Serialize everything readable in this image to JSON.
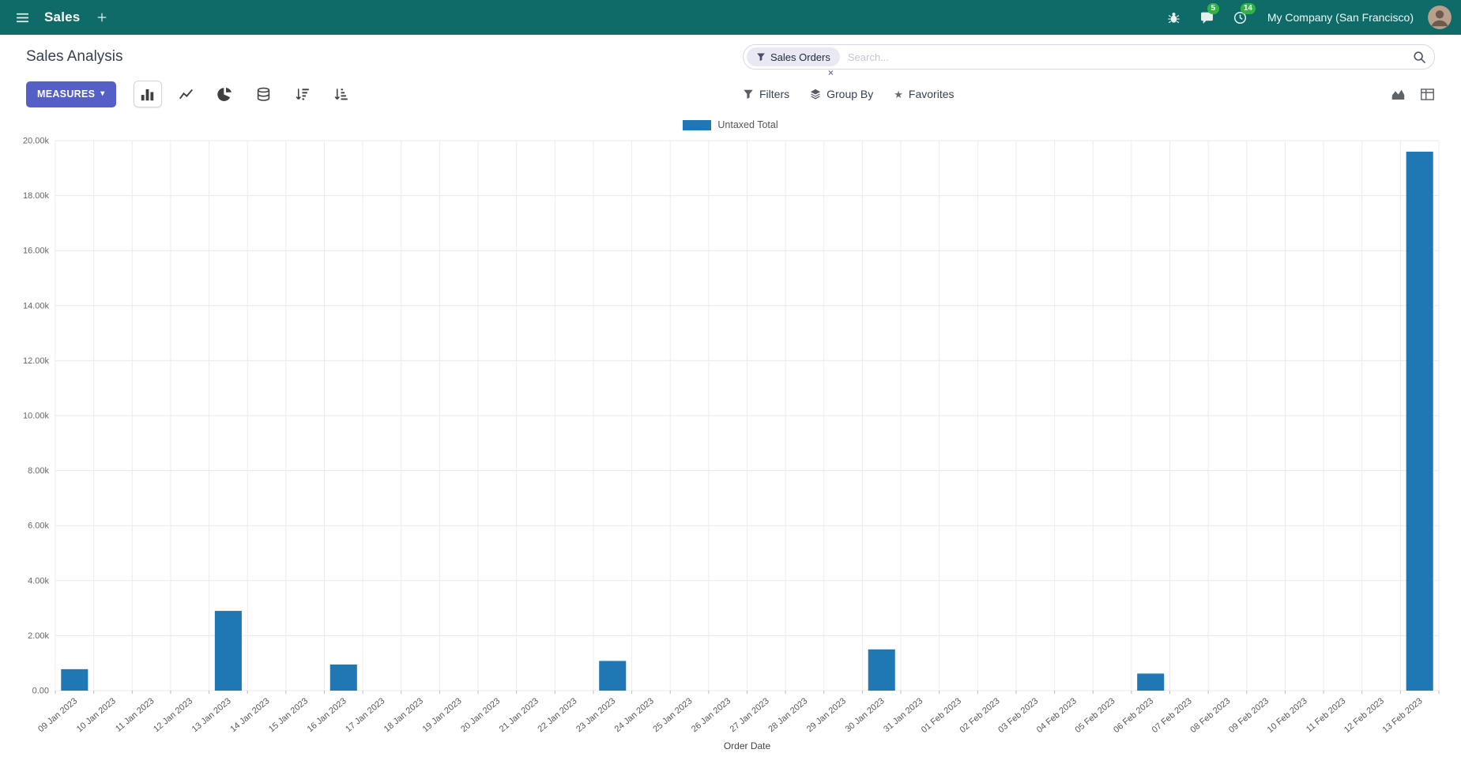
{
  "colors": {
    "topbar_bg": "#0f6b68",
    "primary_button": "#555fc8",
    "badge_green": "#2fb344",
    "bar_blue": "#1f77b4",
    "facet_bg": "#e9e9f4"
  },
  "icons": {
    "caret_down": "▾",
    "star": "★",
    "facet_remove": "×"
  },
  "topbar": {
    "app_name": "Sales",
    "company": "My Company (San Francisco)",
    "messages_badge": "5",
    "activities_badge": "14"
  },
  "control_panel": {
    "breadcrumb": "Sales Analysis",
    "measures_label": "MEASURES",
    "filters_label": "Filters",
    "group_by_label": "Group By",
    "favorites_label": "Favorites"
  },
  "search": {
    "facet_label": "Sales Orders",
    "placeholder": "Search..."
  },
  "chart_data": {
    "type": "bar",
    "title": "",
    "xlabel": "Order Date",
    "ylabel": "",
    "legend_position": "top",
    "grid": true,
    "series_name": "Untaxed Total",
    "bar_color": "#1f77b4",
    "ylim": [
      0,
      20000
    ],
    "y_ticks": [
      "0.00",
      "2.00k",
      "4.00k",
      "6.00k",
      "8.00k",
      "10.00k",
      "12.00k",
      "14.00k",
      "16.00k",
      "18.00k",
      "20.00k"
    ],
    "categories": [
      "09 Jan 2023",
      "10 Jan 2023",
      "11 Jan 2023",
      "12 Jan 2023",
      "13 Jan 2023",
      "14 Jan 2023",
      "15 Jan 2023",
      "16 Jan 2023",
      "17 Jan 2023",
      "18 Jan 2023",
      "19 Jan 2023",
      "20 Jan 2023",
      "21 Jan 2023",
      "22 Jan 2023",
      "23 Jan 2023",
      "24 Jan 2023",
      "25 Jan 2023",
      "26 Jan 2023",
      "27 Jan 2023",
      "28 Jan 2023",
      "29 Jan 2023",
      "30 Jan 2023",
      "31 Jan 2023",
      "01 Feb 2023",
      "02 Feb 2023",
      "03 Feb 2023",
      "04 Feb 2023",
      "05 Feb 2023",
      "06 Feb 2023",
      "07 Feb 2023",
      "08 Feb 2023",
      "09 Feb 2023",
      "10 Feb 2023",
      "11 Feb 2023",
      "12 Feb 2023",
      "13 Feb 2023"
    ],
    "values": [
      780,
      0,
      0,
      0,
      2900,
      0,
      0,
      950,
      0,
      0,
      0,
      0,
      0,
      0,
      1080,
      0,
      0,
      0,
      0,
      0,
      0,
      1500,
      0,
      0,
      0,
      0,
      0,
      0,
      620,
      0,
      0,
      0,
      0,
      0,
      0,
      19600
    ]
  }
}
